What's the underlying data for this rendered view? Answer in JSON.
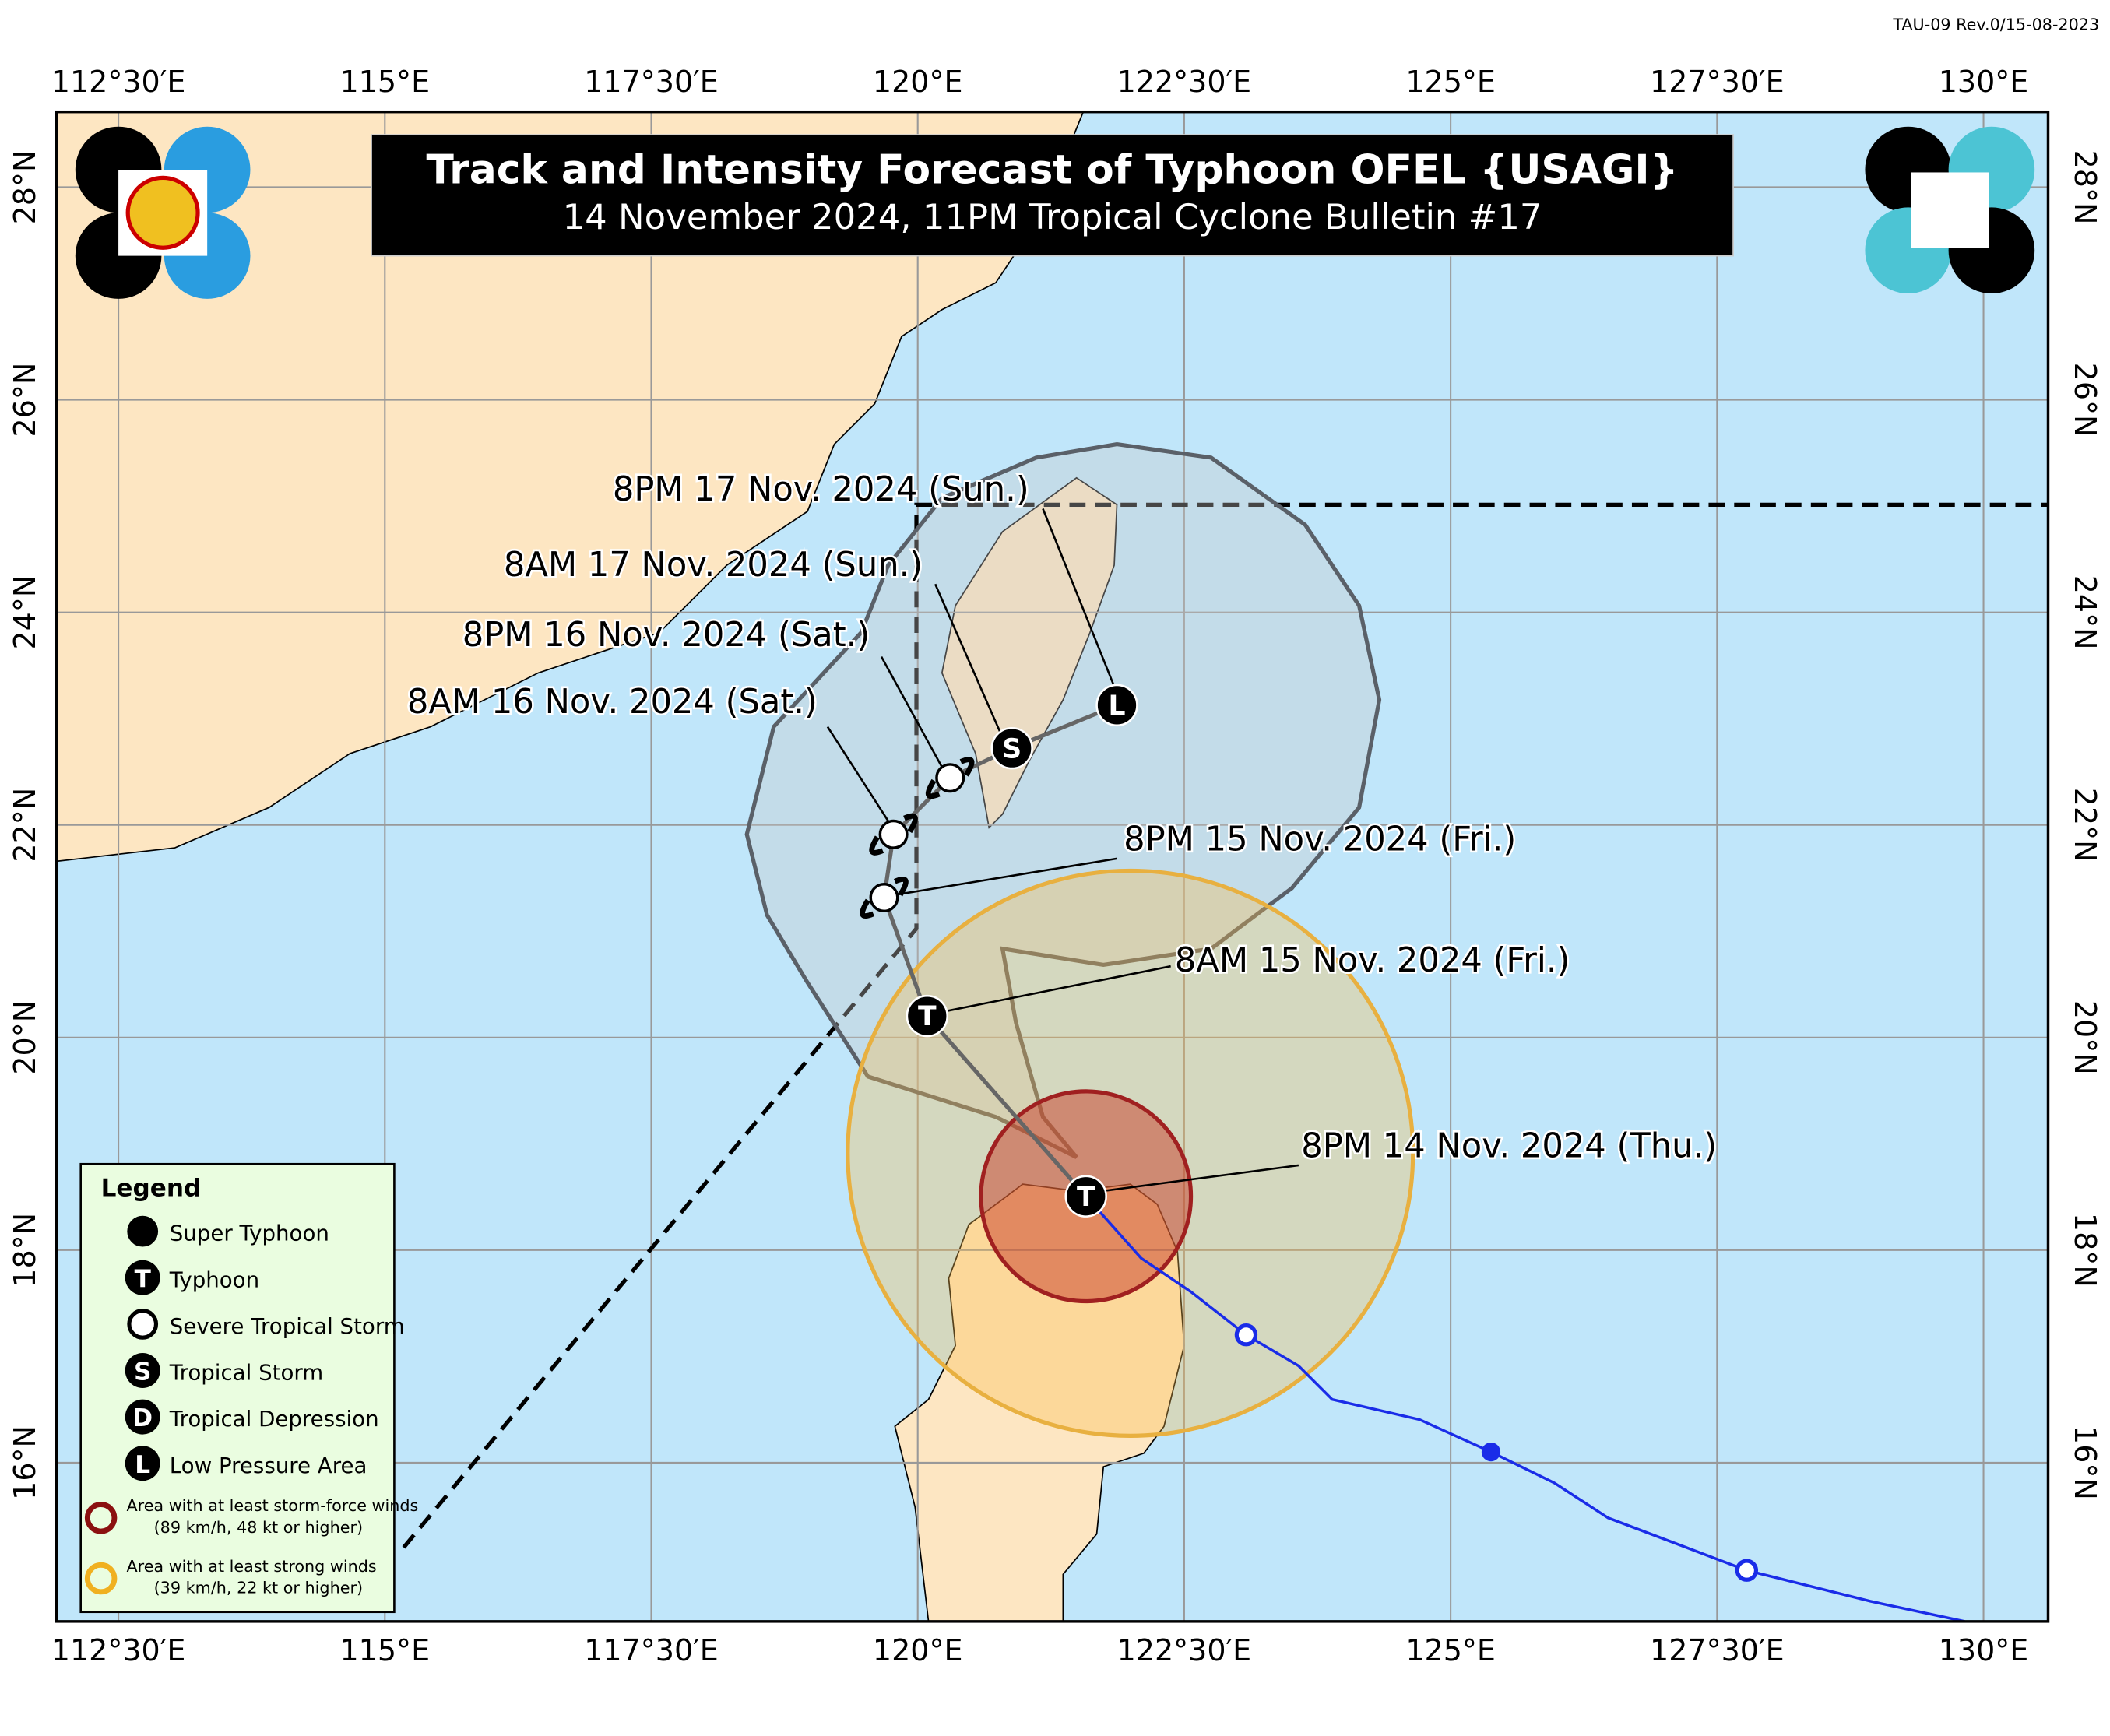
{
  "header": {
    "revision": "TAU-09 Rev.0/15-08-2023",
    "title": "Track and Intensity Forecast of  Typhoon OFEL {USAGI}",
    "subtitle": "14 November 2024, 11PM Tropical Cyclone Bulletin #17"
  },
  "map": {
    "lon_labels": [
      "112°30′E",
      "115°E",
      "117°30′E",
      "120°E",
      "122°30′E",
      "125°E",
      "127°30′E",
      "130°E"
    ],
    "lat_labels": [
      "28°N",
      "26°N",
      "24°N",
      "22°N",
      "20°N",
      "18°N",
      "16°N"
    ],
    "track_symbols": [
      "T",
      "T",
      "S",
      "L"
    ],
    "forecast_labels": [
      "8PM 17 Nov. 2024 (Sun.)",
      "8AM 17 Nov. 2024 (Sun.)",
      "8PM 16 Nov. 2024 (Sat.)",
      "8AM 16 Nov. 2024 (Sat.)",
      "8PM 15 Nov. 2024 (Fri.)",
      "8AM 15 Nov. 2024 (Fri.)",
      "8PM 14 Nov. 2024 (Thu.)"
    ]
  },
  "legend": {
    "title": "Legend",
    "items": [
      {
        "symbol": null,
        "label": "Super Typhoon"
      },
      {
        "symbol": "T",
        "label": "Typhoon"
      },
      {
        "symbol": null,
        "label": "Severe Tropical Storm"
      },
      {
        "symbol": "S",
        "label": "Tropical Storm"
      },
      {
        "symbol": "D",
        "label": "Tropical Depression"
      },
      {
        "symbol": "L",
        "label": "Low Pressure Area"
      }
    ],
    "areas": [
      {
        "label": "Area with at least storm-force winds",
        "note": "(89 km/h, 48 kt or higher)"
      },
      {
        "label": "Area with at least strong winds",
        "note": "(39 km/h, 22 kt or higher)"
      }
    ]
  }
}
